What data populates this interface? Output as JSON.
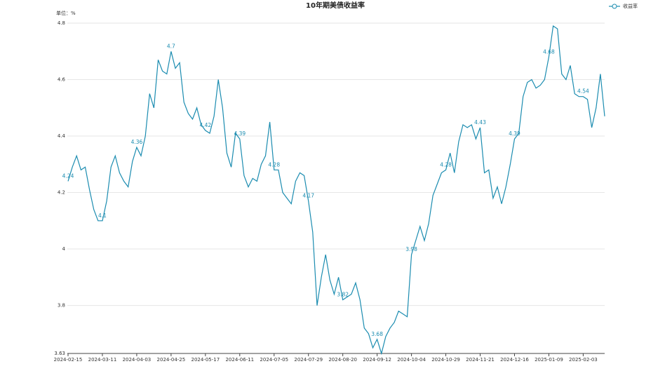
{
  "chart_data": {
    "type": "line",
    "title": "10年期美债收益率",
    "y_label": "单位：%",
    "categories": [
      "2024-02-15",
      null,
      null,
      null,
      null,
      null,
      null,
      null,
      "2024-03-11",
      null,
      null,
      null,
      null,
      null,
      null,
      null,
      "2024-04-03",
      null,
      null,
      null,
      null,
      null,
      null,
      null,
      "2024-04-25",
      null,
      null,
      null,
      null,
      null,
      null,
      null,
      "2024-05-17",
      null,
      null,
      null,
      null,
      null,
      null,
      null,
      "2024-06-11",
      null,
      null,
      null,
      null,
      null,
      null,
      null,
      "2024-07-05",
      null,
      null,
      null,
      null,
      null,
      null,
      null,
      "2024-07-29",
      null,
      null,
      null,
      null,
      null,
      null,
      null,
      "2024-08-20",
      null,
      null,
      null,
      null,
      null,
      null,
      null,
      "2024-09-12",
      null,
      null,
      null,
      null,
      null,
      null,
      null,
      "2024-10-04",
      null,
      null,
      null,
      null,
      null,
      null,
      null,
      "2024-10-29",
      null,
      null,
      null,
      null,
      null,
      null,
      null,
      "2024-11-21",
      null,
      null,
      null,
      null,
      null,
      null,
      null,
      "2024-12-16",
      null,
      null,
      null,
      null,
      null,
      null,
      null,
      "2025-01-09",
      null,
      null,
      null,
      null,
      null,
      null,
      null,
      "2025-02-03",
      null,
      null,
      null,
      null,
      null
    ],
    "series": [
      {
        "name": "收益率",
        "color": "#1b8cb0",
        "values": [
          4.24,
          4.29,
          4.33,
          4.28,
          4.29,
          4.21,
          4.14,
          4.1,
          4.1,
          4.17,
          4.29,
          4.33,
          4.27,
          4.24,
          4.22,
          4.31,
          4.36,
          4.33,
          4.4,
          4.55,
          4.5,
          4.67,
          4.63,
          4.62,
          4.7,
          4.64,
          4.66,
          4.52,
          4.48,
          4.46,
          4.5,
          4.44,
          4.42,
          4.41,
          4.47,
          4.6,
          4.5,
          4.34,
          4.29,
          4.41,
          4.39,
          4.26,
          4.22,
          4.25,
          4.24,
          4.3,
          4.33,
          4.45,
          4.28,
          4.28,
          4.2,
          4.18,
          4.16,
          4.24,
          4.27,
          4.26,
          4.17,
          4.06,
          3.8,
          3.9,
          3.98,
          3.89,
          3.84,
          3.9,
          3.82,
          3.83,
          3.84,
          3.88,
          3.82,
          3.72,
          3.7,
          3.65,
          3.68,
          3.63,
          3.69,
          3.72,
          3.74,
          3.78,
          3.77,
          3.76,
          3.98,
          4.03,
          4.08,
          4.03,
          4.09,
          4.19,
          4.23,
          4.27,
          4.28,
          4.34,
          4.27,
          4.38,
          4.44,
          4.43,
          4.44,
          4.39,
          4.43,
          4.27,
          4.28,
          4.18,
          4.22,
          4.16,
          4.22,
          4.3,
          4.39,
          4.41,
          4.54,
          4.59,
          4.6,
          4.57,
          4.58,
          4.6,
          4.68,
          4.79,
          4.78,
          4.62,
          4.6,
          4.65,
          4.55,
          4.54,
          4.54,
          4.53,
          4.43,
          4.5,
          4.62,
          4.47
        ],
        "value_labels": [
          "4.24",
          null,
          null,
          null,
          null,
          null,
          null,
          null,
          "4.1",
          null,
          null,
          null,
          null,
          null,
          null,
          null,
          "4.36",
          null,
          null,
          null,
          null,
          null,
          null,
          null,
          "4.7",
          null,
          null,
          null,
          null,
          null,
          null,
          null,
          "4.42",
          null,
          null,
          null,
          null,
          null,
          null,
          null,
          "4.39",
          null,
          null,
          null,
          null,
          null,
          null,
          null,
          "4.28",
          null,
          null,
          null,
          null,
          null,
          null,
          null,
          "4.17",
          null,
          null,
          null,
          null,
          null,
          null,
          null,
          "3.82",
          null,
          null,
          null,
          null,
          null,
          null,
          null,
          "3.68",
          null,
          null,
          null,
          null,
          null,
          null,
          null,
          "3.98",
          null,
          null,
          null,
          null,
          null,
          null,
          null,
          "4.28",
          null,
          null,
          null,
          null,
          null,
          null,
          null,
          "4.43",
          null,
          null,
          null,
          null,
          null,
          null,
          null,
          "4.39",
          null,
          null,
          null,
          null,
          null,
          null,
          null,
          "4.68",
          null,
          null,
          null,
          null,
          null,
          null,
          null,
          "4.54",
          null,
          null,
          null,
          null,
          null
        ]
      }
    ],
    "ylim": [
      3.63,
      4.8
    ],
    "yticks": [
      3.63,
      3.8,
      4,
      4.2,
      4.4,
      4.6,
      4.8
    ],
    "grid": true,
    "legend": "top-right"
  }
}
